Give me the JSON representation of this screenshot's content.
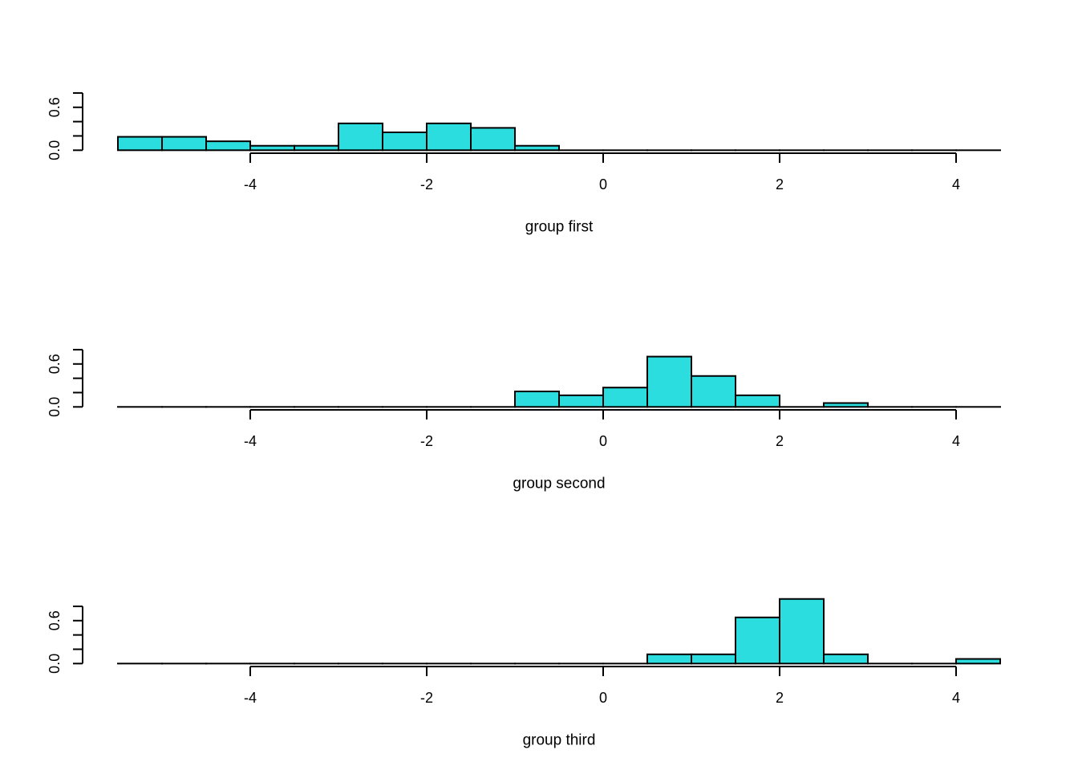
{
  "chart_data": [
    {
      "type": "bar",
      "subtype": "histogram",
      "xlabel": "group first",
      "ylabel": "",
      "bin_width": 0.5,
      "bin_start": -5.5,
      "bin_end": 4.5,
      "n": 32,
      "bins": [
        -5.5,
        -5.0,
        -4.5,
        -4.0,
        -3.5,
        -3.0,
        -2.5,
        -2.0,
        -1.5,
        -1.0,
        -0.5,
        0.0,
        0.5,
        1.0,
        1.5,
        2.0,
        2.5,
        3.0,
        3.5,
        4.0
      ],
      "counts": [
        3,
        3,
        2,
        1,
        1,
        6,
        4,
        6,
        5,
        1,
        0,
        0,
        0,
        0,
        0,
        0,
        0,
        0,
        0,
        0
      ],
      "density": [
        0.1875,
        0.1875,
        0.125,
        0.0625,
        0.0625,
        0.375,
        0.25,
        0.375,
        0.3125,
        0.0625,
        0,
        0,
        0,
        0,
        0,
        0,
        0,
        0,
        0,
        0
      ],
      "xticks": [
        "-4",
        "-2",
        "0",
        "2",
        "4"
      ],
      "xtick_values": [
        -4,
        -2,
        0,
        2,
        4
      ],
      "yticks": [
        "0.0",
        "0.6"
      ],
      "ytick_values": [
        0.0,
        0.2,
        0.4,
        0.6,
        0.8
      ],
      "xlim": [
        -5.5,
        4.5
      ],
      "ylim": [
        0,
        0.8
      ],
      "grid": false
    },
    {
      "type": "bar",
      "subtype": "histogram",
      "xlabel": "group second",
      "ylabel": "",
      "bin_width": 0.5,
      "bin_start": -5.5,
      "bin_end": 4.5,
      "n": 37,
      "bins": [
        -5.5,
        -5.0,
        -4.5,
        -4.0,
        -3.5,
        -3.0,
        -2.5,
        -2.0,
        -1.5,
        -1.0,
        -0.5,
        0.0,
        0.5,
        1.0,
        1.5,
        2.0,
        2.5,
        3.0,
        3.5,
        4.0
      ],
      "counts": [
        0,
        0,
        0,
        0,
        0,
        0,
        0,
        0,
        0,
        4,
        3,
        5,
        13,
        8,
        3,
        0,
        1,
        0,
        0,
        0
      ],
      "density": [
        0,
        0,
        0,
        0,
        0,
        0,
        0,
        0,
        0,
        0.216,
        0.162,
        0.27,
        0.703,
        0.432,
        0.162,
        0,
        0.054,
        0,
        0,
        0
      ],
      "xticks": [
        "-4",
        "-2",
        "0",
        "2",
        "4"
      ],
      "xtick_values": [
        -4,
        -2,
        0,
        2,
        4
      ],
      "yticks": [
        "0.0",
        "0.6"
      ],
      "ytick_values": [
        0.0,
        0.2,
        0.4,
        0.6,
        0.8
      ],
      "xlim": [
        -5.5,
        4.5
      ],
      "ylim": [
        0,
        0.8
      ],
      "grid": false
    },
    {
      "type": "bar",
      "subtype": "histogram",
      "xlabel": "group third",
      "ylabel": "",
      "bin_width": 0.5,
      "bin_start": -5.5,
      "bin_end": 4.5,
      "n": 31,
      "bins": [
        -5.5,
        -5.0,
        -4.5,
        -4.0,
        -3.5,
        -3.0,
        -2.5,
        -2.0,
        -1.5,
        -1.0,
        -0.5,
        0.0,
        0.5,
        1.0,
        1.5,
        2.0,
        2.5,
        3.0,
        3.5,
        4.0
      ],
      "counts": [
        0,
        0,
        0,
        0,
        0,
        0,
        0,
        0,
        0,
        0,
        0,
        0,
        2,
        2,
        10,
        14,
        2,
        0,
        0,
        1
      ],
      "density": [
        0,
        0,
        0,
        0,
        0,
        0,
        0,
        0,
        0,
        0,
        0,
        0,
        0.129,
        0.129,
        0.645,
        0.903,
        0.129,
        0,
        0,
        0.0645
      ],
      "xticks": [
        "-4",
        "-2",
        "0",
        "2",
        "4"
      ],
      "xtick_values": [
        -4,
        -2,
        0,
        2,
        4
      ],
      "yticks": [
        "0.0",
        "0.6"
      ],
      "ytick_values": [
        0.0,
        0.2,
        0.4,
        0.6,
        0.8
      ],
      "xlim": [
        -5.5,
        4.5
      ],
      "ylim": [
        0,
        0.8
      ],
      "grid": false
    }
  ],
  "style": {
    "bar_fill": "#2cdddf",
    "bar_stroke": "#000000",
    "axis_color": "#000000",
    "background": "#ffffff"
  }
}
